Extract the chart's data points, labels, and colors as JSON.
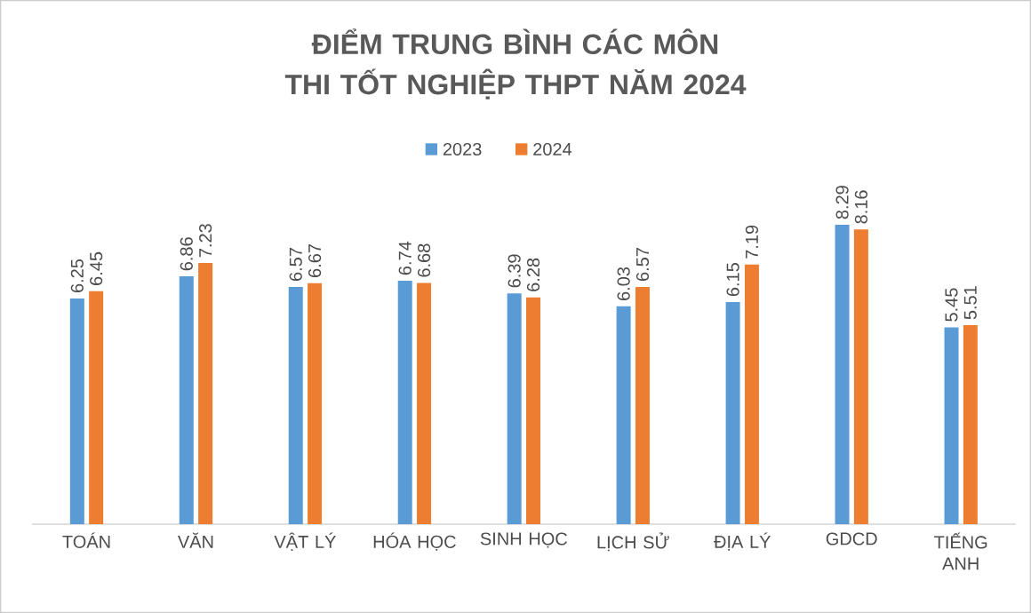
{
  "chart_data": {
    "type": "bar",
    "title": "ĐIỂM TRUNG BÌNH CÁC MÔN THI TỐT NGHIỆP THPT NĂM 2024",
    "categories": [
      "TOÁN",
      "VĂN",
      "VẬT LÝ",
      "HÓA HỌC",
      "SINH HỌC",
      "LỊCH SỬ",
      "ĐỊA LÝ",
      "GDCD",
      "TIẾNG ANH"
    ],
    "series": [
      {
        "name": "2023",
        "color": "#5b9bd5",
        "values": [
          6.25,
          6.86,
          6.57,
          6.74,
          6.39,
          6.03,
          6.15,
          8.29,
          5.45
        ]
      },
      {
        "name": "2024",
        "color": "#ed7d31",
        "values": [
          6.45,
          7.23,
          6.67,
          6.68,
          6.28,
          6.57,
          7.19,
          8.16,
          5.51
        ]
      }
    ],
    "data_labels": true,
    "legend": "top"
  }
}
